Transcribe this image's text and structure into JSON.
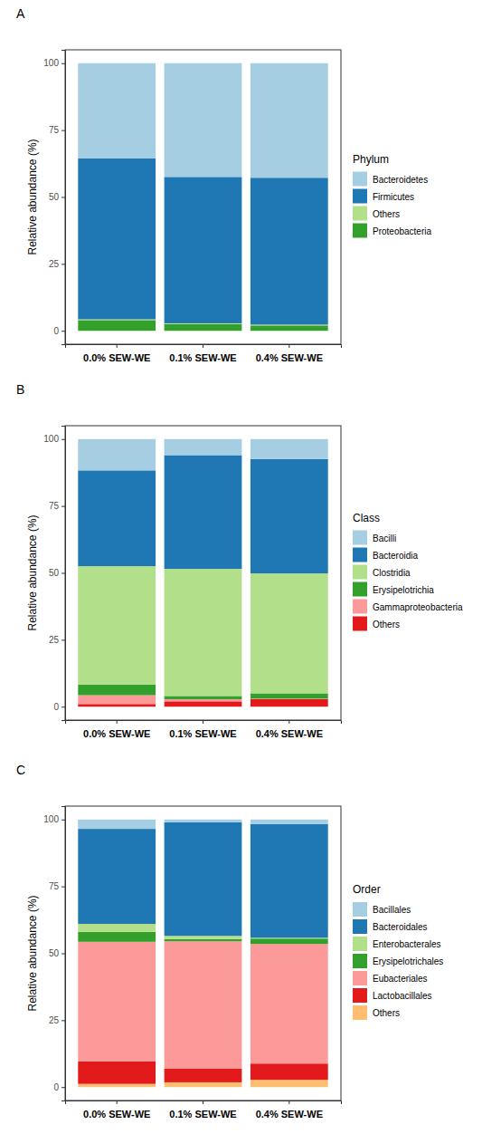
{
  "chart_data": [
    {
      "type": "bar",
      "title": "A",
      "ylabel": "Relative abundance (%)",
      "legend_title": "Phylum",
      "stacked": true,
      "legend": "right",
      "grid": false,
      "categories": [
        "0.0% SEW-WE",
        "0.1% SEW-WE",
        "0.4% SEW-WE"
      ],
      "ylim": [
        -5,
        105
      ],
      "yticks": [
        0,
        25,
        50,
        75,
        100
      ],
      "series": [
        {
          "name": "Bacteroidetes",
          "color": "#a6cee3",
          "values": [
            35.5,
            42.5,
            42.8
          ]
        },
        {
          "name": "Firmicutes",
          "color": "#1f78b4",
          "values": [
            60.2,
            54.7,
            54.9
          ]
        },
        {
          "name": "Others",
          "color": "#b2df8a",
          "values": [
            0.3,
            0.3,
            0.3
          ]
        },
        {
          "name": "Proteobacteria",
          "color": "#33a02c",
          "values": [
            4.0,
            2.5,
            2.0
          ]
        }
      ]
    },
    {
      "type": "bar",
      "title": "B",
      "ylabel": "Relative abundance (%)",
      "legend_title": "Class",
      "stacked": true,
      "legend": "right",
      "grid": false,
      "categories": [
        "0.0% SEW-WE",
        "0.1% SEW-WE",
        "0.4% SEW-WE"
      ],
      "ylim": [
        -5,
        105
      ],
      "yticks": [
        0,
        25,
        50,
        75,
        100
      ],
      "series": [
        {
          "name": "Bacilli",
          "color": "#a6cee3",
          "values": [
            11.7,
            6.0,
            7.5
          ]
        },
        {
          "name": "Bacteroidia",
          "color": "#1f78b4",
          "values": [
            35.8,
            42.5,
            42.7
          ]
        },
        {
          "name": "Clostridia",
          "color": "#b2df8a",
          "values": [
            44.2,
            47.5,
            44.8
          ]
        },
        {
          "name": "Erysipelotrichia",
          "color": "#33a02c",
          "values": [
            4.0,
            1.2,
            2.0
          ]
        },
        {
          "name": "Gammaproteobacteria",
          "color": "#fb9a99",
          "values": [
            3.3,
            0.8,
            0.2
          ]
        },
        {
          "name": "Others",
          "color": "#e31a1c",
          "values": [
            1.0,
            2.0,
            2.8
          ]
        }
      ]
    },
    {
      "type": "bar",
      "title": "C",
      "ylabel": "Relative abundance (%)",
      "legend_title": "Order",
      "stacked": true,
      "legend": "right",
      "grid": false,
      "categories": [
        "0.0% SEW-WE",
        "0.1% SEW-WE",
        "0.4% SEW-WE"
      ],
      "ylim": [
        -5,
        105
      ],
      "yticks": [
        0,
        25,
        50,
        75,
        100
      ],
      "series": [
        {
          "name": "Bacillales",
          "color": "#a6cee3",
          "values": [
            3.5,
            1.0,
            1.7
          ]
        },
        {
          "name": "Bacteroidales",
          "color": "#1f78b4",
          "values": [
            35.5,
            42.5,
            42.5
          ]
        },
        {
          "name": "Enterobacterales",
          "color": "#b2df8a",
          "values": [
            3.0,
            1.2,
            0.3
          ]
        },
        {
          "name": "Erysipelotrichales",
          "color": "#33a02c",
          "values": [
            3.7,
            0.8,
            2.0
          ]
        },
        {
          "name": "Eubacteriales",
          "color": "#fb9a99",
          "values": [
            44.6,
            47.5,
            44.7
          ]
        },
        {
          "name": "Lactobacillales",
          "color": "#e31a1c",
          "values": [
            8.5,
            5.2,
            6.1
          ]
        },
        {
          "name": "Others",
          "color": "#fdbf6f",
          "values": [
            1.2,
            1.8,
            2.7
          ]
        }
      ]
    }
  ]
}
